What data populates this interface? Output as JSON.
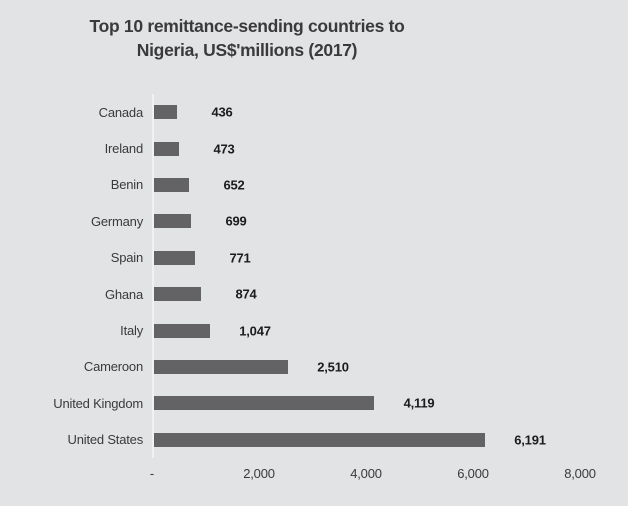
{
  "title_lines": [
    "Top 10 remittance-sending countries to",
    "Nigeria, US$'millions (2017)"
  ],
  "chart_data": {
    "type": "bar",
    "orientation": "horizontal",
    "title": "Top 10 remittance-sending countries to Nigeria, US$'millions (2017)",
    "categories": [
      "Canada",
      "Ireland",
      "Benin",
      "Germany",
      "Spain",
      "Ghana",
      "Italy",
      "Cameroon",
      "United Kingdom",
      "United States"
    ],
    "values": [
      436,
      473,
      652,
      699,
      771,
      874,
      1047,
      2510,
      4119,
      6191
    ],
    "value_labels": [
      "436",
      "473",
      "652",
      "699",
      "771",
      "874",
      "1,047",
      "2,510",
      "4,119",
      "6,191"
    ],
    "xlabel": "",
    "ylabel": "",
    "xlim": [
      0,
      8000
    ],
    "x_ticks": [
      0,
      2000,
      4000,
      6000,
      8000
    ],
    "x_tick_labels": [
      "-",
      "2,000",
      "4,000",
      "6,000",
      "8,000"
    ],
    "grid": false,
    "legend": false,
    "data_labels": "outside-end"
  },
  "colors": {
    "background": "#e2e3e5",
    "bar": "#636366",
    "title_text": "#3a3a3c",
    "category_text": "#3a3a3c",
    "value_text": "#1c1c1e",
    "tick_text": "#3a3a3c",
    "axis_line": "#f1f1f3"
  }
}
